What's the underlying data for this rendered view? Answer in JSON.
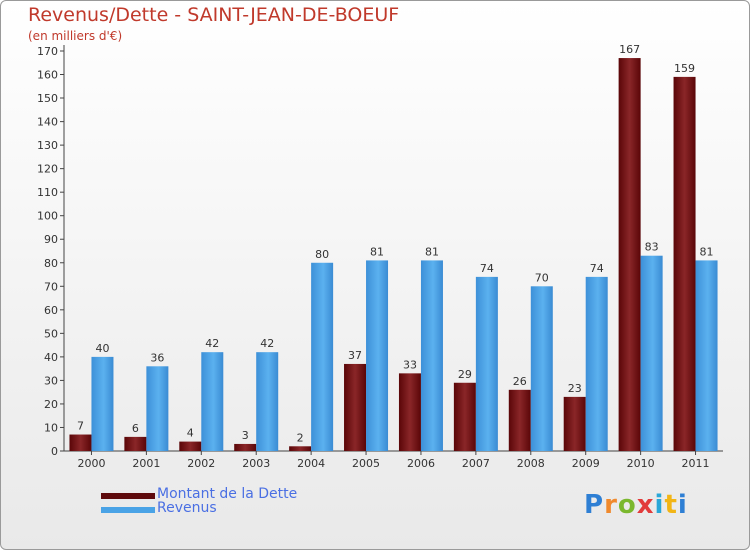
{
  "title": "Revenus/Dette - SAINT-JEAN-DE-BOEUF",
  "subtitle": "(en milliers d'€)",
  "legend": {
    "dette_label": "Montant de la Dette",
    "revenus_label": "Revenus"
  },
  "logo_text": "Proxiti",
  "colors": {
    "dette": "#7a1416",
    "revenus": "#4aa3e6",
    "axis_text": "#333333",
    "title": "#c0392b",
    "legend_text": "#4a6fe3"
  },
  "chart_data": {
    "type": "bar",
    "title": "Revenus/Dette - SAINT-JEAN-DE-BOEUF",
    "subtitle": "(en milliers d'€)",
    "xlabel": "",
    "ylabel": "",
    "ylim": [
      0,
      170
    ],
    "y_ticks": [
      0,
      10,
      20,
      30,
      40,
      50,
      60,
      70,
      80,
      90,
      100,
      110,
      120,
      130,
      140,
      150,
      160,
      170
    ],
    "categories": [
      "2000",
      "2001",
      "2002",
      "2003",
      "2004",
      "2005",
      "2006",
      "2007",
      "2008",
      "2009",
      "2010",
      "2011"
    ],
    "series": [
      {
        "name": "Montant de la Dette",
        "values": [
          7,
          6,
          4,
          3,
          2,
          37,
          33,
          29,
          26,
          23,
          167,
          159
        ]
      },
      {
        "name": "Revenus",
        "values": [
          40,
          36,
          42,
          42,
          80,
          81,
          81,
          74,
          70,
          74,
          83,
          81
        ]
      }
    ],
    "grid": false,
    "legend_position": "bottom-left"
  }
}
